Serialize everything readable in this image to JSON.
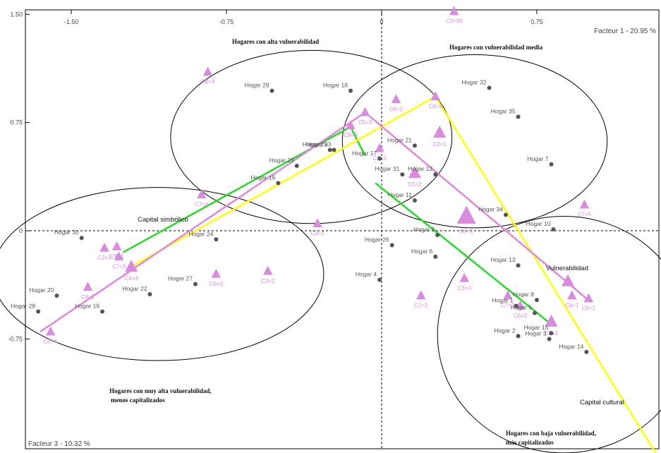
{
  "chart_data": {
    "type": "scatter",
    "title": "",
    "x_axis": {
      "label": "Facteur 1 - 20.95 %",
      "range": [
        -1.65,
        1.35
      ],
      "ticks": [
        -1.5,
        -0.75,
        0,
        0.75
      ],
      "tick_labels": [
        "-1.50",
        "-0.75",
        "0",
        "0.75"
      ]
    },
    "y_axis": {
      "label": "Facteur 3 - 10.32 %",
      "range": [
        -1.6,
        1.5
      ],
      "ticks": [
        1.5,
        0.75,
        0,
        -0.75
      ],
      "tick_labels": [
        "1.50",
        "0.75",
        "0",
        "-0.75"
      ]
    },
    "grid": false,
    "households": [
      {
        "label": "Hogar 1",
        "x": 0.65,
        "y": -0.52
      },
      {
        "label": "Hogar 2",
        "x": 0.66,
        "y": -0.73
      },
      {
        "label": "Hogar 3",
        "x": 0.81,
        "y": -0.75
      },
      {
        "label": "Hogar 4",
        "x": -0.01,
        "y": -0.34
      },
      {
        "label": "Hogar 5",
        "x": 0.74,
        "y": -0.57
      },
      {
        "label": "Hogar 6",
        "x": 0.26,
        "y": -0.18
      },
      {
        "label": "Hogar 7",
        "x": 0.82,
        "y": 0.46
      },
      {
        "label": "Hogar 8",
        "x": 0.75,
        "y": -0.48
      },
      {
        "label": "Hogar 9",
        "x": 0.27,
        "y": -0.03
      },
      {
        "label": "Hogar 10",
        "x": 0.83,
        "y": 0.01
      },
      {
        "label": "Hogar 11",
        "x": 0.16,
        "y": 0.21
      },
      {
        "label": "Hogar 12",
        "x": 0.26,
        "y": 0.39
      },
      {
        "label": "Hogar 13",
        "x": 0.66,
        "y": -0.24
      },
      {
        "label": "Hogar 14",
        "x": 0.99,
        "y": -0.84
      },
      {
        "label": "Hogar 15",
        "x": 0.82,
        "y": -0.71
      },
      {
        "label": "Hogar 16",
        "x": -0.5,
        "y": 0.33
      },
      {
        "label": "Hogar 17",
        "x": -0.01,
        "y": 0.5
      },
      {
        "label": "Hogar 18",
        "x": -0.15,
        "y": 0.97
      },
      {
        "label": "Hogar 19",
        "x": -1.35,
        "y": -0.56
      },
      {
        "label": "Hogar 20",
        "x": -1.57,
        "y": -0.45
      },
      {
        "label": "Hogar 21",
        "x": 0.16,
        "y": 0.59
      },
      {
        "label": "Hogar 22",
        "x": -1.12,
        "y": -0.44
      },
      {
        "label": "Hogar 23",
        "x": -0.41,
        "y": 0.45
      },
      {
        "label": "Hogar 24",
        "x": -0.8,
        "y": -0.06
      },
      {
        "label": "Hogar 25",
        "x": -0.25,
        "y": 0.56
      },
      {
        "label": "Hogar 27",
        "x": -0.9,
        "y": -0.37
      },
      {
        "label": "Hogar 28",
        "x": -1.66,
        "y": -0.56
      },
      {
        "label": "Hogar 29",
        "x": -0.53,
        "y": 0.97
      },
      {
        "label": "Hogar 30",
        "x": -1.45,
        "y": -0.05
      },
      {
        "label": "Hogar 31",
        "x": 0.1,
        "y": 0.39
      },
      {
        "label": "Hogar 32",
        "x": 0.52,
        "y": 0.99
      },
      {
        "label": "Hogar 33",
        "x": -0.23,
        "y": 0.56
      },
      {
        "label": "Hogar 34",
        "x": 0.6,
        "y": 0.11
      },
      {
        "label": "Hogar 35",
        "x": 0.66,
        "y": 0.79
      },
      {
        "label": "Hogar 26",
        "x": 0.05,
        "y": -0.1
      }
    ],
    "modalities": [
      {
        "label": "C3=99",
        "x": 0.35,
        "y": 1.52,
        "size": 1
      },
      {
        "label": "C8=4",
        "x": -0.84,
        "y": 1.1,
        "size": 1
      },
      {
        "label": "C6=2",
        "x": 0.07,
        "y": 0.91,
        "size": 1
      },
      {
        "label": "C6=3",
        "x": 0.26,
        "y": 0.93,
        "size": 1
      },
      {
        "label": "C5=3",
        "x": -0.08,
        "y": 0.82,
        "size": 1
      },
      {
        "label": "C9=3",
        "x": -0.15,
        "y": 0.73,
        "size": 1
      },
      {
        "label": "C2=1",
        "x": 0.28,
        "y": 0.68,
        "size": 2
      },
      {
        "label": "C7=3",
        "x": -0.01,
        "y": 0.57,
        "size": 1
      },
      {
        "label": "C5=2",
        "x": 0.16,
        "y": 0.4,
        "size": 2
      },
      {
        "label": "C7=4",
        "x": -0.87,
        "y": 0.25,
        "size": 1
      },
      {
        "label": "C3=1",
        "x": -0.31,
        "y": 0.05,
        "size": 1
      },
      {
        "label": "C4=1",
        "x": 0.41,
        "y": 0.1,
        "size": 4
      },
      {
        "label": "C7=5",
        "x": 0.98,
        "y": 0.18,
        "size": 1
      },
      {
        "label": "C2=3",
        "x": -1.34,
        "y": -0.12,
        "size": 1
      },
      {
        "label": "C9=4",
        "x": -1.28,
        "y": -0.11,
        "size": 1
      },
      {
        "label": "C7=3",
        "x": -1.27,
        "y": -0.18,
        "size": 1
      },
      {
        "label": "C6=4",
        "x": -1.21,
        "y": -0.25,
        "size": 2
      },
      {
        "label": "C4=2",
        "x": -1.42,
        "y": -0.39,
        "size": 1
      },
      {
        "label": "C8=3",
        "x": -0.8,
        "y": -0.3,
        "size": 1
      },
      {
        "label": "C3=2",
        "x": -0.55,
        "y": -0.28,
        "size": 1
      },
      {
        "label": "C3=3",
        "x": 0.4,
        "y": -0.33,
        "size": 1
      },
      {
        "label": "C2=2",
        "x": 0.19,
        "y": -0.45,
        "size": 1
      },
      {
        "label": "C7=1",
        "x": 0.61,
        "y": -0.45,
        "size": 1
      },
      {
        "label": "C6=2",
        "x": 0.67,
        "y": -0.52,
        "size": 1
      },
      {
        "label": "C8=1",
        "x": 0.92,
        "y": -0.45,
        "size": 1
      },
      {
        "label": "C9=1",
        "x": 0.82,
        "y": -0.63,
        "size": 2
      },
      {
        "label": "C5=1",
        "x": 1.0,
        "y": -0.47,
        "size": 1
      },
      {
        "label": "C5=4",
        "x": -1.6,
        "y": -0.7,
        "size": 1
      },
      {
        "label": "Vulnerabilidad",
        "x": 0.9,
        "y": -0.35,
        "size": 2
      }
    ],
    "vectors": [
      {
        "name": "Capital simbólico",
        "color": "#22dd22",
        "segments": [
          [
            [
              -1.25,
              -0.15
            ],
            [
              -0.15,
              0.72
            ]
          ],
          [
            [
              -0.15,
              0.72
            ],
            [
              -0.08,
              0.52
            ]
          ],
          [
            [
              -0.03,
              0.33
            ],
            [
              0.83,
              -0.66
            ]
          ]
        ]
      },
      {
        "name": "Capital cultural",
        "color": "#ffff00",
        "segments": [
          [
            [
              -1.21,
              -0.25
            ],
            [
              0.26,
              0.93
            ]
          ],
          [
            [
              0.26,
              0.93
            ],
            [
              1.35,
              -1.6
            ]
          ]
        ]
      },
      {
        "name": "Vulnerabilidad",
        "color": "#dd88dd",
        "segments": [
          [
            [
              -1.65,
              -0.7
            ],
            [
              -0.08,
              0.82
            ]
          ],
          [
            [
              -0.08,
              0.82
            ],
            [
              0.99,
              -0.47
            ]
          ]
        ]
      }
    ],
    "ellipses": [
      {
        "cx": -1.08,
        "cy": -0.3,
        "rx": 0.8,
        "ry": 0.6
      },
      {
        "cx": -0.34,
        "cy": 0.65,
        "rx": 0.68,
        "ry": 0.6
      },
      {
        "cx": 0.45,
        "cy": 0.62,
        "rx": 0.64,
        "ry": 0.6
      },
      {
        "cx": 0.88,
        "cy": -0.72,
        "rx": 0.61,
        "ry": 0.82
      }
    ],
    "regions": [
      "Hogares con alta vulnerabilidad",
      "Hogares con vulnerabilidad media",
      "Hogares con muy alta vulnerabilidad, menos capitalizados",
      "Hogares con baja vulnerabilidad, más capitalizados"
    ],
    "vector_labels": [
      "Capital simbólico",
      "Vulnerabilidad",
      "Capital cultural"
    ],
    "marker_colors": {
      "households": "#555555",
      "modalities": "#d98be0"
    }
  }
}
